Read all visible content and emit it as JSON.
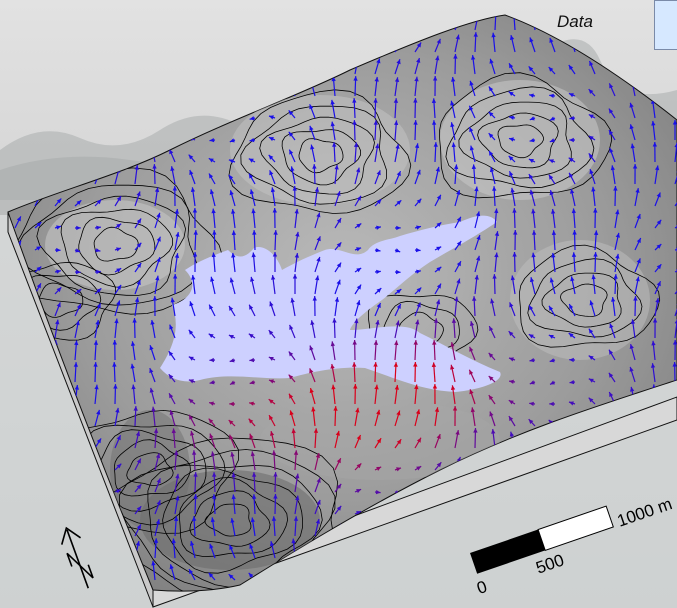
{
  "legend": {
    "title": "Data",
    "swatch_color": "#d6e8ff"
  },
  "scale_bar": {
    "labels": [
      "0",
      "500",
      "1000 m"
    ]
  },
  "north_arrow": {
    "label": "N"
  },
  "colors": {
    "lake": "#cdd0ff",
    "slope_high": "#d9001a",
    "slope_low": "#1a10e8",
    "terrain": "#9a9a9a",
    "contour": "#000000"
  }
}
